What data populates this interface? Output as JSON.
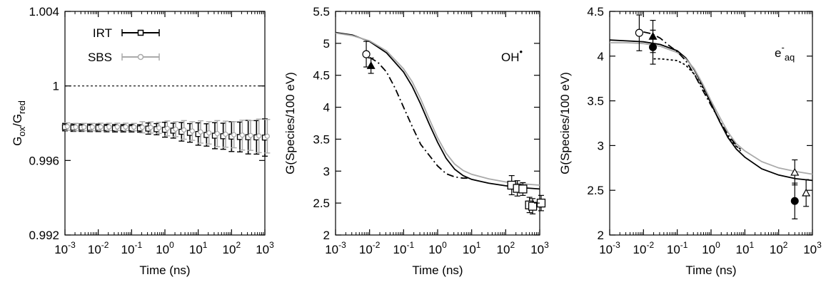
{
  "chart_data": [
    {
      "type": "scatter",
      "title": "",
      "xlabel": "Time (ns)",
      "ylabel": "G_ox/G_red",
      "ylabel_main": "G",
      "ylabel_parts": [
        "ox",
        "G",
        "red"
      ],
      "xscale": "log",
      "xlim": [
        0.001,
        1000
      ],
      "ylim": [
        0.992,
        1.004
      ],
      "xticks": [
        {
          "value": 0.001,
          "base": "10",
          "exp": "-3"
        },
        {
          "value": 0.01,
          "base": "10",
          "exp": "-2"
        },
        {
          "value": 0.1,
          "base": "10",
          "exp": "-1"
        },
        {
          "value": 1,
          "base": "10",
          "exp": "0"
        },
        {
          "value": 10,
          "base": "10",
          "exp": "1"
        },
        {
          "value": 100,
          "base": "10",
          "exp": "2"
        },
        {
          "value": 1000,
          "base": "10",
          "exp": "3"
        }
      ],
      "yticks": [
        {
          "value": 0.992,
          "label": "0.992"
        },
        {
          "value": 0.996,
          "label": "0.996"
        },
        {
          "value": 1.0,
          "label": "1"
        },
        {
          "value": 1.004,
          "label": "1.004"
        }
      ],
      "reference_line": {
        "y": 1.0,
        "style": "dotted"
      },
      "legend_position": "top-left",
      "series": [
        {
          "name": "IRT",
          "color": "#000000",
          "marker": "square",
          "x": [
            0.001,
            0.00178,
            0.00316,
            0.00562,
            0.01,
            0.0178,
            0.0316,
            0.0562,
            0.1,
            0.178,
            0.316,
            0.562,
            1,
            1.78,
            3.16,
            5.62,
            10,
            17.8,
            31.6,
            56.2,
            100,
            178,
            316,
            562,
            1000
          ],
          "y": [
            0.99779,
            0.99776,
            0.99776,
            0.99775,
            0.99775,
            0.99774,
            0.99773,
            0.99773,
            0.99773,
            0.99772,
            0.99771,
            0.99768,
            0.99765,
            0.9976,
            0.99754,
            0.99748,
            0.99742,
            0.99737,
            0.99733,
            0.9973,
            0.99728,
            0.99726,
            0.99725,
            0.99724,
            0.99723
          ],
          "err": [
            0.0002,
            0.0002,
            0.0002,
            0.0002,
            0.0002,
            0.0002,
            0.0002,
            0.0002,
            0.0002,
            0.0002,
            0.0003,
            0.0003,
            0.0004,
            0.0004,
            0.0005,
            0.0005,
            0.0006,
            0.0006,
            0.0007,
            0.0007,
            0.0008,
            0.0008,
            0.0009,
            0.0009,
            0.001
          ]
        },
        {
          "name": "SBS",
          "color": "#aaaaaa",
          "marker": "circle",
          "x": [
            0.00118,
            0.0021,
            0.00373,
            0.00663,
            0.0118,
            0.021,
            0.0373,
            0.0663,
            0.118,
            0.21,
            0.373,
            0.663,
            1.18,
            2.1,
            3.73,
            6.63,
            11.8,
            21.0,
            37.3,
            66.3,
            118,
            210,
            373,
            663,
            1180
          ],
          "y": [
            0.99782,
            0.99779,
            0.99779,
            0.99779,
            0.9978,
            0.9978,
            0.9978,
            0.9978,
            0.99779,
            0.99778,
            0.99777,
            0.99775,
            0.99772,
            0.99768,
            0.99764,
            0.99758,
            0.99753,
            0.99748,
            0.99744,
            0.99741,
            0.99738,
            0.99736,
            0.99734,
            0.99732,
            0.9973
          ],
          "err": [
            0.0002,
            0.0002,
            0.0002,
            0.0002,
            0.0002,
            0.0002,
            0.0002,
            0.0002,
            0.0002,
            0.0003,
            0.0003,
            0.0003,
            0.0004,
            0.0004,
            0.0005,
            0.0005,
            0.0006,
            0.0006,
            0.0007,
            0.0007,
            0.0007,
            0.0008,
            0.0008,
            0.0009,
            0.0009
          ]
        }
      ]
    },
    {
      "type": "line",
      "title": "",
      "annotation": "OH",
      "annotation_superscript": "•",
      "annotation_position": "top-right",
      "xlabel": "Time (ns)",
      "ylabel": "G(Species/100 eV)",
      "xscale": "log",
      "xlim": [
        0.001,
        1000
      ],
      "ylim": [
        2,
        5.5
      ],
      "xticks": [
        {
          "value": 0.001,
          "base": "10",
          "exp": "-3"
        },
        {
          "value": 0.01,
          "base": "10",
          "exp": "-2"
        },
        {
          "value": 0.1,
          "base": "10",
          "exp": "-1"
        },
        {
          "value": 1,
          "base": "10",
          "exp": "0"
        },
        {
          "value": 10,
          "base": "10",
          "exp": "1"
        },
        {
          "value": 100,
          "base": "10",
          "exp": "2"
        },
        {
          "value": 1000,
          "base": "10",
          "exp": "3"
        }
      ],
      "yticks": [
        {
          "value": 2,
          "label": "2"
        },
        {
          "value": 2.5,
          "label": "2.5"
        },
        {
          "value": 3,
          "label": "3"
        },
        {
          "value": 3.5,
          "label": "3.5"
        },
        {
          "value": 4,
          "label": "4"
        },
        {
          "value": 4.5,
          "label": "4.5"
        },
        {
          "value": 5,
          "label": "5"
        },
        {
          "value": 5.5,
          "label": "5.5"
        }
      ],
      "series": [
        {
          "color": "#000000",
          "dash": "solid",
          "x": [
            0.001,
            0.00316,
            0.01,
            0.0316,
            0.1,
            0.178,
            0.316,
            0.562,
            1,
            1.78,
            3.16,
            5.62,
            10,
            31.6,
            100,
            316,
            1000
          ],
          "y": [
            5.17,
            5.13,
            5.03,
            4.85,
            4.55,
            4.33,
            4.05,
            3.74,
            3.45,
            3.2,
            3.03,
            2.93,
            2.87,
            2.81,
            2.77,
            2.74,
            2.72
          ]
        },
        {
          "color": "#aaaaaa",
          "dash": "solid",
          "x": [
            0.001,
            0.00316,
            0.01,
            0.0316,
            0.1,
            0.178,
            0.316,
            0.562,
            1,
            1.78,
            3.16,
            5.62,
            10,
            31.6,
            100,
            316,
            1000
          ],
          "y": [
            5.16,
            5.12,
            5.04,
            4.88,
            4.6,
            4.4,
            4.13,
            3.82,
            3.52,
            3.28,
            3.11,
            3.01,
            2.95,
            2.88,
            2.83,
            2.8,
            2.78
          ]
        },
        {
          "color": "#000000",
          "dash": "dash-dot",
          "x": [
            0.01,
            0.0178,
            0.0316,
            0.0562,
            0.1,
            0.178,
            0.316,
            0.562,
            1,
            1.78,
            3.16,
            5.62,
            7.5
          ],
          "y": [
            4.78,
            4.7,
            4.55,
            4.3,
            4.0,
            3.7,
            3.42,
            3.25,
            3.08,
            2.96,
            2.91,
            2.89,
            2.89
          ]
        }
      ],
      "points": [
        {
          "x": 0.008,
          "y": 4.83,
          "err": 0.2,
          "marker": "circle-open"
        },
        {
          "x": 0.011,
          "y": 4.65,
          "err": 0.12,
          "marker": "triangle-filled"
        },
        {
          "x": 150,
          "y": 2.78,
          "err": 0.15,
          "marker": "square-open"
        },
        {
          "x": 220,
          "y": 2.73,
          "err": 0.12,
          "marker": "square-open"
        },
        {
          "x": 320,
          "y": 2.72,
          "err": 0.1,
          "marker": "square-open"
        },
        {
          "x": 500,
          "y": 2.47,
          "err": 0.12,
          "marker": "square-open"
        },
        {
          "x": 620,
          "y": 2.45,
          "err": 0.12,
          "marker": "square-open"
        },
        {
          "x": 1100,
          "y": 2.5,
          "err": 0.12,
          "marker": "square-open"
        }
      ]
    },
    {
      "type": "line",
      "title": "",
      "annotation": "e",
      "annotation_superscript": "-",
      "annotation_subscript": "aq",
      "annotation_position": "top-right",
      "xlabel": "Time (ns)",
      "ylabel": "G(Species/100 eV)",
      "xscale": "log",
      "xlim": [
        0.001,
        1000
      ],
      "ylim": [
        2,
        4.5
      ],
      "xticks": [
        {
          "value": 0.001,
          "base": "10",
          "exp": "-3"
        },
        {
          "value": 0.01,
          "base": "10",
          "exp": "-2"
        },
        {
          "value": 0.1,
          "base": "10",
          "exp": "-1"
        },
        {
          "value": 1,
          "base": "10",
          "exp": "0"
        },
        {
          "value": 10,
          "base": "10",
          "exp": "1"
        },
        {
          "value": 100,
          "base": "10",
          "exp": "2"
        },
        {
          "value": 1000,
          "base": "10",
          "exp": "3"
        }
      ],
      "yticks": [
        {
          "value": 2,
          "label": "2"
        },
        {
          "value": 2.5,
          "label": "2.5"
        },
        {
          "value": 3,
          "label": "3"
        },
        {
          "value": 3.5,
          "label": "3.5"
        },
        {
          "value": 4,
          "label": "4"
        },
        {
          "value": 4.5,
          "label": "4.5"
        }
      ],
      "series": [
        {
          "color": "#000000",
          "dash": "solid",
          "x": [
            0.001,
            0.00316,
            0.01,
            0.0316,
            0.1,
            0.178,
            0.316,
            0.562,
            1,
            1.78,
            3.16,
            5.62,
            10,
            31.6,
            100,
            316,
            1000
          ],
          "y": [
            4.18,
            4.17,
            4.16,
            4.13,
            4.06,
            3.98,
            3.85,
            3.67,
            3.47,
            3.27,
            3.09,
            2.96,
            2.87,
            2.74,
            2.67,
            2.63,
            2.61
          ]
        },
        {
          "color": "#aaaaaa",
          "dash": "solid",
          "x": [
            0.001,
            0.00316,
            0.01,
            0.0316,
            0.1,
            0.178,
            0.316,
            0.562,
            1,
            1.78,
            3.16,
            5.62,
            10,
            31.6,
            100,
            316,
            1000
          ],
          "y": [
            4.15,
            4.15,
            4.14,
            4.11,
            4.04,
            3.97,
            3.86,
            3.69,
            3.5,
            3.32,
            3.15,
            3.02,
            2.94,
            2.82,
            2.75,
            2.71,
            2.68
          ]
        },
        {
          "color": "#000000",
          "dash": "dash-dot",
          "x": [
            0.01,
            0.0178,
            0.0316,
            0.0562,
            0.1,
            0.178,
            0.316,
            0.562,
            1,
            1.78,
            3.16,
            5.62,
            7.5
          ],
          "y": [
            4.27,
            4.25,
            4.2,
            4.12,
            4.05,
            3.95,
            3.8,
            3.62,
            3.45,
            3.28,
            3.12,
            3.0,
            2.94
          ]
        },
        {
          "color": "#000000",
          "dash": "dotted",
          "x": [
            0.02,
            0.0316,
            0.0562,
            0.1,
            0.178,
            0.316,
            0.562,
            1,
            1.78,
            3.16,
            5.62,
            7.5
          ],
          "y": [
            3.97,
            3.97,
            3.96,
            3.95,
            3.9,
            3.8,
            3.65,
            3.47,
            3.27,
            3.1,
            2.99,
            2.96
          ]
        }
      ],
      "points": [
        {
          "x": 0.0075,
          "y": 4.26,
          "err": 0.2,
          "marker": "circle-open"
        },
        {
          "x": 0.019,
          "y": 4.22,
          "err": 0.18,
          "marker": "triangle-filled"
        },
        {
          "x": 0.019,
          "y": 4.1,
          "err": 0.19,
          "marker": "circle-filled"
        },
        {
          "x": 300,
          "y": 2.38,
          "err": 0.2,
          "marker": "circle-filled"
        },
        {
          "x": 300,
          "y": 2.7,
          "err": 0.14,
          "marker": "triangle-open"
        },
        {
          "x": 650,
          "y": 2.47,
          "err": 0.15,
          "marker": "triangle-open"
        }
      ]
    }
  ]
}
